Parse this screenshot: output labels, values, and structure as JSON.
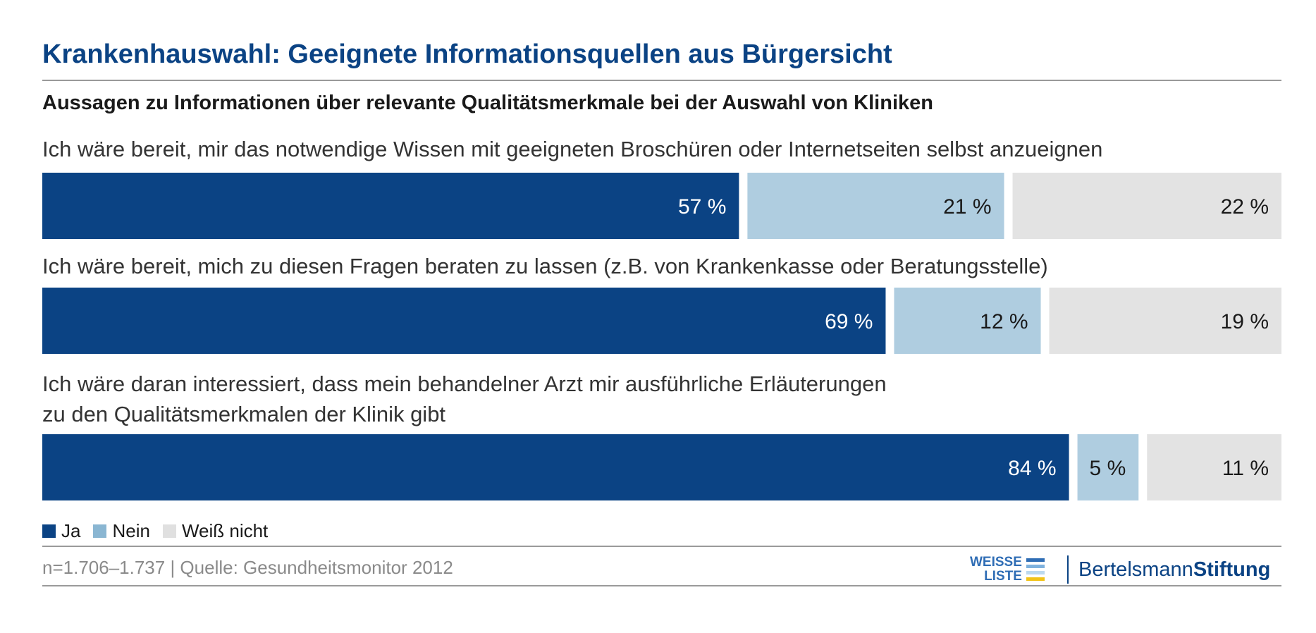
{
  "title": "Krankenhauswahl: Geeignete Informationsquellen aus Bürgersicht",
  "subtitle": "Aussagen zu Informationen über relevante Qualitätsmerkmale bei der Auswahl von Kliniken",
  "questions": [
    {
      "lines": [
        "Ich wäre bereit, mir das notwendige Wissen mit geeigneten Broschüren oder Internetseiten selbst anzueignen"
      ]
    },
    {
      "lines": [
        "Ich wäre bereit, mich zu diesen Fragen beraten zu lassen (z.B. von Krankenkasse oder Beratungsstelle)"
      ]
    },
    {
      "lines": [
        "Ich wäre daran interessiert, dass mein behandelner Arzt mir ausführliche Erläuterungen",
        "zu den Qualitätsmerkmalen der Klinik gibt"
      ]
    }
  ],
  "legend": [
    {
      "label": "Ja",
      "color": "#0b4384"
    },
    {
      "label": "Nein",
      "color": "#8ab6d2"
    },
    {
      "label": "Weiß nicht",
      "color": "#e0e0e0"
    }
  ],
  "source": "n=1.706–1.737 | Quelle: Gesundheitsmonitor 2012",
  "logos": {
    "weisse_liste_line1": "WEISSE",
    "weisse_liste_line2": "LISTE",
    "bertelsmann_regular": "Bertelsmann",
    "bertelsmann_bold": "Stiftung"
  },
  "colors": {
    "ja": "#0b4384",
    "nein": "#afcde0",
    "weiss_nicht": "#e3e3e3",
    "label_dark": "#1a1a1a",
    "label_light": "#ffffff"
  },
  "chart_data": {
    "type": "bar",
    "orientation": "horizontal-stacked",
    "unit": "%",
    "categories": [
      "Ich wäre bereit, mir das notwendige Wissen mit geeigneten Broschüren oder Internetseiten selbst anzueignen",
      "Ich wäre bereit, mich zu diesen Fragen beraten zu lassen (z.B. von Krankenkasse oder Beratungsstelle)",
      "Ich wäre daran interessiert, dass mein behandelner Arzt mir ausführliche Erläuterungen zu den Qualitätsmerkmalen der Klinik gibt"
    ],
    "series": [
      {
        "name": "Ja",
        "values": [
          57,
          69,
          84
        ],
        "labels": [
          "57 %",
          "69 %",
          "84 %"
        ]
      },
      {
        "name": "Nein",
        "values": [
          21,
          12,
          5
        ],
        "labels": [
          "21 %",
          "12 %",
          "5 %"
        ]
      },
      {
        "name": "Weiß nicht",
        "values": [
          22,
          19,
          11
        ],
        "labels": [
          "22 %",
          "19 %",
          "11 %"
        ]
      }
    ],
    "xlim": [
      0,
      100
    ]
  }
}
